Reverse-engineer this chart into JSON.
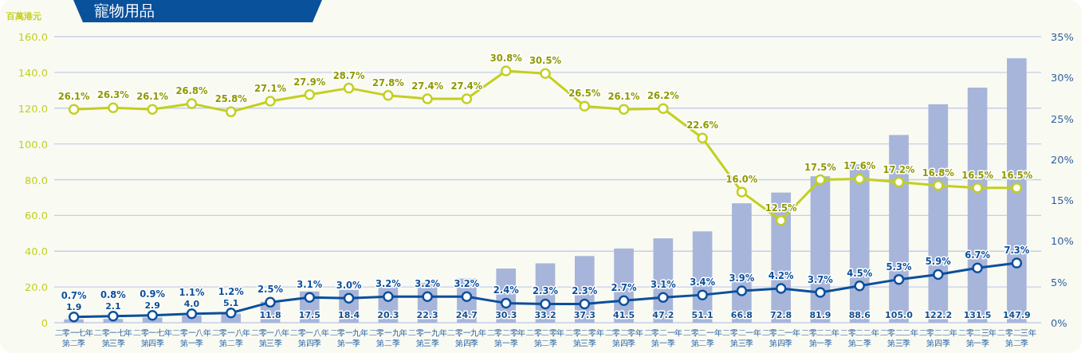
{
  "chart_data": {
    "type": "bar",
    "title": "寵物用品",
    "ylabel": "百萬港元",
    "categories": [
      "二零一七年第二季",
      "二零一七年第三季",
      "二零一七年第四季",
      "二零一八年第一季",
      "二零一八年第二季",
      "二零一八年第三季",
      "二零一八年第四季",
      "二零一九年第一季",
      "二零一九年第二季",
      "二零一九年第三季",
      "二零一九年第四季",
      "二零二零年第一季",
      "二零二零年第二季",
      "二零二零年第三季",
      "二零二零年第四季",
      "二零二一年第一季",
      "二零二一年第二季",
      "二零二一年第三季",
      "二零二一年第四季",
      "二零二二年第一季",
      "二零二二年第二季",
      "二零二二年第三季",
      "二零二二年第四季",
      "二零二三年第一季",
      "二零二三年第二季"
    ],
    "series": [
      {
        "color": "#a7b5da",
        "values": [
          1.9,
          2.1,
          2.9,
          4.0,
          5.1,
          11.8,
          17.5,
          18.4,
          20.3,
          22.3,
          24.7,
          30.3,
          33.2,
          37.3,
          41.5,
          47.2,
          51.1,
          66.8,
          72.8,
          81.9,
          88.6,
          105.0,
          122.2,
          131.5,
          147.9
        ],
        "value_labels": [
          "1.9",
          "2.1",
          "2.9",
          "4.0",
          "5.1",
          "11.8",
          "17.5",
          "18.4",
          "20.3",
          "22.3",
          "24.7",
          "30.3",
          "33.2",
          "37.3",
          "41.5",
          "47.2",
          "51.1",
          "66.8",
          "72.8",
          "81.9",
          "88.6",
          "105.0",
          "122.2",
          "131.5",
          "147.9"
        ]
      },
      {
        "type": "line",
        "axis": "y2",
        "color": "#0b4f9c",
        "values": [
          0.7,
          0.8,
          0.9,
          1.1,
          1.2,
          2.5,
          3.1,
          3.0,
          3.2,
          3.2,
          3.2,
          2.4,
          2.3,
          2.3,
          2.7,
          3.1,
          3.4,
          3.9,
          4.2,
          3.7,
          4.5,
          5.3,
          5.9,
          6.7,
          7.3
        ],
        "value_labels": [
          "0.7%",
          "0.8%",
          "0.9%",
          "1.1%",
          "1.2%",
          "2.5%",
          "3.1%",
          "3.0%",
          "3.2%",
          "3.2%",
          "3.2%",
          "2.4%",
          "2.3%",
          "2.3%",
          "2.7%",
          "3.1%",
          "3.4%",
          "3.9%",
          "4.2%",
          "3.7%",
          "4.5%",
          "5.3%",
          "5.9%",
          "6.7%",
          "7.3%"
        ]
      },
      {
        "type": "line",
        "axis": "y2",
        "color": "#c3cf1f",
        "values": [
          26.1,
          26.3,
          26.1,
          26.8,
          25.8,
          27.1,
          27.9,
          28.7,
          27.8,
          27.4,
          27.4,
          30.8,
          30.5,
          26.5,
          26.1,
          26.2,
          22.6,
          16.0,
          12.5,
          17.5,
          17.6,
          17.2,
          16.8,
          16.5,
          16.5
        ],
        "value_labels": [
          "26.1%",
          "26.3%",
          "26.1%",
          "26.8%",
          "25.8%",
          "27.1%",
          "27.9%",
          "28.7%",
          "27.8%",
          "27.4%",
          "27.4%",
          "30.8%",
          "30.5%",
          "26.5%",
          "26.1%",
          "26.2%",
          "22.6%",
          "16.0%",
          "12.5%",
          "17.5%",
          "17.6%",
          "17.2%",
          "16.8%",
          "16.5%",
          "16.5%"
        ]
      }
    ],
    "ylim": [
      0,
      160
    ],
    "yticks": [
      {
        "value": 0,
        "label": "0"
      },
      {
        "value": 20,
        "label": "20.0"
      },
      {
        "value": 40,
        "label": "40.0"
      },
      {
        "value": 60,
        "label": "60.0"
      },
      {
        "value": 80,
        "label": "80.0"
      },
      {
        "value": 100,
        "label": "100.0"
      },
      {
        "value": 120,
        "label": "120.0"
      },
      {
        "value": 140,
        "label": "140.0"
      },
      {
        "value": 160,
        "label": "160.0"
      }
    ],
    "y2lim": [
      0,
      35
    ],
    "y2ticks": [
      {
        "value": 0,
        "label": "0%"
      },
      {
        "value": 5,
        "label": "5%"
      },
      {
        "value": 10,
        "label": "10%"
      },
      {
        "value": 15,
        "label": "15%"
      },
      {
        "value": 20,
        "label": "20%"
      },
      {
        "value": 25,
        "label": "25%"
      },
      {
        "value": 30,
        "label": "30%"
      },
      {
        "value": 35,
        "label": "35%"
      }
    ],
    "grid": "y",
    "marker": "circle",
    "line_style": "solid"
  }
}
